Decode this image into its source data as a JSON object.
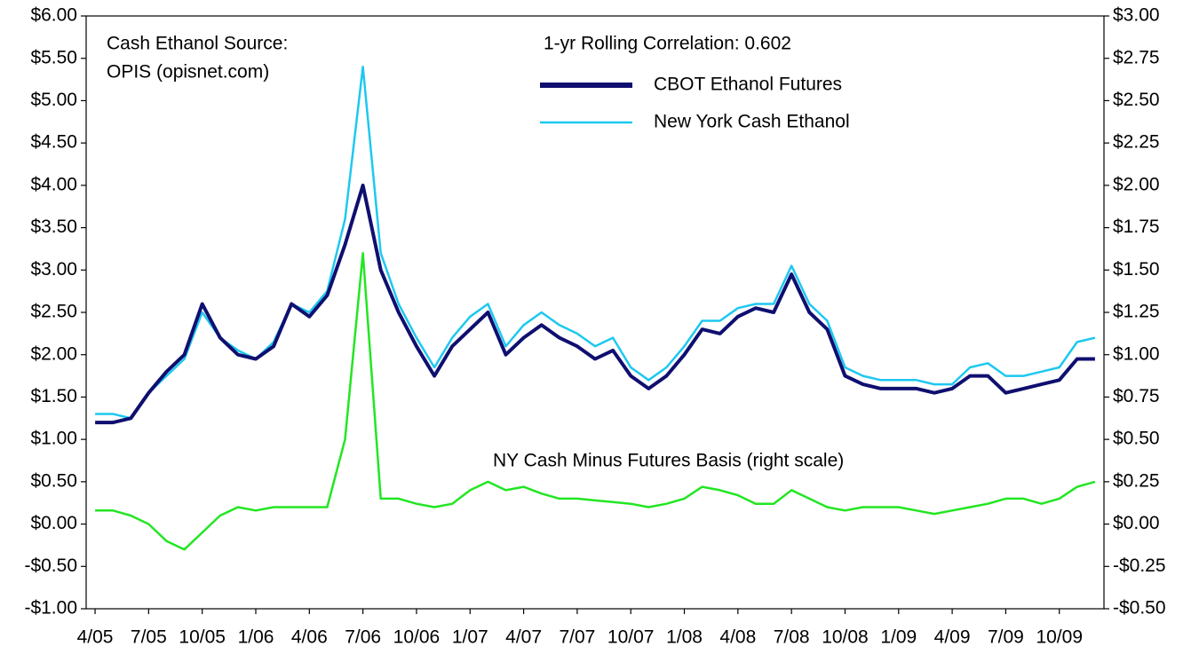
{
  "chart_data": {
    "type": "line",
    "annotations": [
      "Cash Ethanol Source:",
      "OPIS (opisnet.com)",
      "1-yr Rolling Correlation:  0.602"
    ],
    "categories": [
      "4/05",
      null,
      null,
      "7/05",
      null,
      null,
      "10/05",
      null,
      null,
      "1/06",
      null,
      null,
      "4/06",
      null,
      null,
      "7/06",
      null,
      null,
      "10/06",
      null,
      null,
      "1/07",
      null,
      null,
      "4/07",
      null,
      null,
      "7/07",
      null,
      null,
      "10/07",
      null,
      null,
      "1/08",
      null,
      null,
      "4/08",
      null,
      null,
      "7/08",
      null,
      null,
      "10/08",
      null,
      null,
      "1/09",
      null,
      null,
      "4/09",
      null,
      null,
      "7/09",
      null,
      null,
      "10/09",
      null,
      null
    ],
    "series": [
      {
        "name": "CBOT Ethanol Futures",
        "color": "#0f0f70",
        "values": [
          1.2,
          1.2,
          1.25,
          1.55,
          1.8,
          2.0,
          2.6,
          2.2,
          2.0,
          1.95,
          2.1,
          2.6,
          2.45,
          2.7,
          3.3,
          4.0,
          3.0,
          2.5,
          2.1,
          1.75,
          2.1,
          2.3,
          2.5,
          2.0,
          2.2,
          2.35,
          2.2,
          2.1,
          1.95,
          2.05,
          1.75,
          1.6,
          1.75,
          2.0,
          2.3,
          2.25,
          2.45,
          2.55,
          2.5,
          2.95,
          2.5,
          2.3,
          1.75,
          1.65,
          1.6,
          1.6,
          1.6,
          1.55,
          1.6,
          1.75,
          1.75,
          1.55,
          1.6,
          1.65,
          1.7,
          1.95,
          1.95
        ]
      },
      {
        "name": "New York Cash Ethanol",
        "color": "#1ec8f0",
        "values": [
          1.3,
          1.3,
          1.25,
          1.55,
          1.75,
          1.95,
          2.5,
          2.2,
          2.05,
          1.95,
          2.15,
          2.6,
          2.5,
          2.75,
          3.6,
          5.4,
          3.2,
          2.6,
          2.2,
          1.85,
          2.2,
          2.45,
          2.6,
          2.1,
          2.35,
          2.5,
          2.35,
          2.25,
          2.1,
          2.2,
          1.85,
          1.7,
          1.85,
          2.1,
          2.4,
          2.4,
          2.55,
          2.6,
          2.6,
          3.05,
          2.6,
          2.4,
          1.85,
          1.75,
          1.7,
          1.7,
          1.7,
          1.65,
          1.65,
          1.85,
          1.9,
          1.75,
          1.75,
          1.8,
          1.85,
          2.15,
          2.2
        ]
      },
      {
        "name": "NY Cash Minus Futures Basis (right scale)",
        "color": "#22e622",
        "axis": "y2",
        "values": [
          0.08,
          0.08,
          0.05,
          0.0,
          -0.1,
          -0.15,
          -0.05,
          0.05,
          0.1,
          0.08,
          0.1,
          0.1,
          0.1,
          0.1,
          0.5,
          1.6,
          0.15,
          0.15,
          0.12,
          0.1,
          0.12,
          0.2,
          0.25,
          0.2,
          0.22,
          0.18,
          0.15,
          0.15,
          0.14,
          0.13,
          0.12,
          0.1,
          0.12,
          0.15,
          0.22,
          0.2,
          0.17,
          0.12,
          0.12,
          0.2,
          0.15,
          0.1,
          0.08,
          0.1,
          0.1,
          0.1,
          0.08,
          0.06,
          0.08,
          0.1,
          0.12,
          0.15,
          0.15,
          0.12,
          0.15,
          0.22,
          0.25
        ]
      }
    ],
    "ylim": [
      -1,
      6
    ],
    "yticks": [
      {
        "value": -1,
        "label": "-$1.00"
      },
      {
        "value": -0.5,
        "label": "-$0.50"
      },
      {
        "value": 0,
        "label": "$0.00"
      },
      {
        "value": 0.5,
        "label": "$0.50"
      },
      {
        "value": 1,
        "label": "$1.00"
      },
      {
        "value": 1.5,
        "label": "$1.50"
      },
      {
        "value": 2,
        "label": "$2.00"
      },
      {
        "value": 2.5,
        "label": "$2.50"
      },
      {
        "value": 3,
        "label": "$3.00"
      },
      {
        "value": 3.5,
        "label": "$3.50"
      },
      {
        "value": 4,
        "label": "$4.00"
      },
      {
        "value": 4.5,
        "label": "$4.50"
      },
      {
        "value": 5,
        "label": "$5.00"
      },
      {
        "value": 5.5,
        "label": "$5.50"
      },
      {
        "value": 6,
        "label": "$6.00"
      }
    ],
    "y2lim": [
      -0.5,
      3
    ],
    "y2ticks": [
      {
        "value": -0.5,
        "label": "-$0.50"
      },
      {
        "value": -0.25,
        "label": "-$0.25"
      },
      {
        "value": 0,
        "label": "$0.00"
      },
      {
        "value": 0.25,
        "label": "$0.25"
      },
      {
        "value": 0.5,
        "label": "$0.50"
      },
      {
        "value": 0.75,
        "label": "$0.75"
      },
      {
        "value": 1,
        "label": "$1.00"
      },
      {
        "value": 1.25,
        "label": "$1.25"
      },
      {
        "value": 1.5,
        "label": "$1.50"
      },
      {
        "value": 1.75,
        "label": "$1.75"
      },
      {
        "value": 2,
        "label": "$2.00"
      },
      {
        "value": 2.25,
        "label": "$2.25"
      },
      {
        "value": 2.5,
        "label": "$2.50"
      },
      {
        "value": 2.75,
        "label": "$2.75"
      },
      {
        "value": 3,
        "label": "$3.00"
      }
    ],
    "grid": false
  }
}
